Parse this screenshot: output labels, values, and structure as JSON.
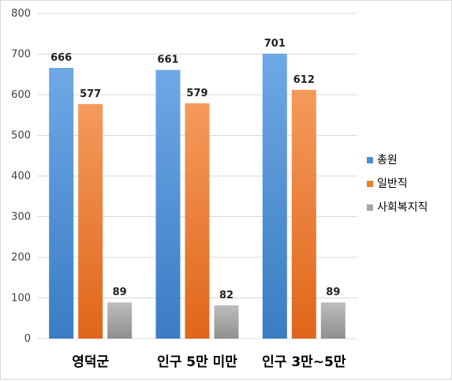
{
  "chart_data": {
    "type": "bar",
    "categories": [
      "영덕군",
      "인구 5만 미만",
      "인구 3만~5만"
    ],
    "series": [
      {
        "name": "총원",
        "values": [
          666,
          661,
          701
        ],
        "color": "#4a8fd6"
      },
      {
        "name": "일반직",
        "values": [
          577,
          579,
          612
        ],
        "color": "#f07f2c"
      },
      {
        "name": "사회복지직",
        "values": [
          89,
          82,
          89
        ],
        "color": "#a5a5a5"
      }
    ],
    "yticks": [
      0,
      100,
      200,
      300,
      400,
      500,
      600,
      700,
      800
    ],
    "ylim": [
      0,
      800
    ],
    "grid": true,
    "legend_position": "right",
    "data_labels": true
  }
}
